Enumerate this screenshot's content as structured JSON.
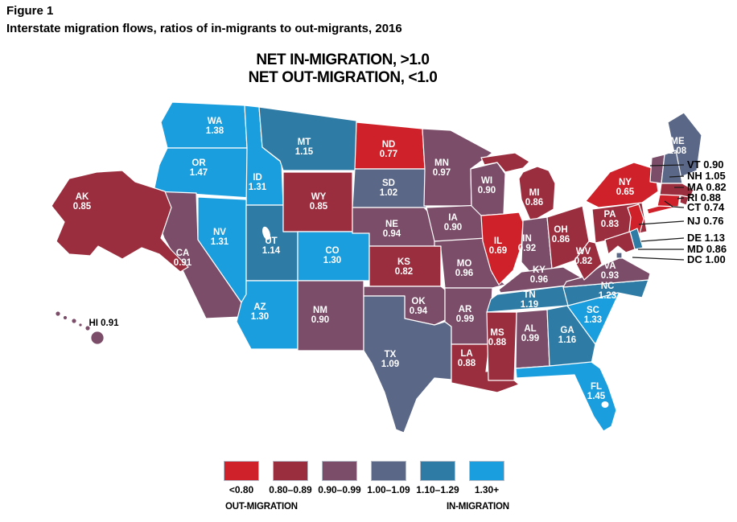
{
  "figure": {
    "label": "Figure 1",
    "title": "Interstate migration flows, ratios of in-migrants to out-migrants, 2016",
    "headline_lines": [
      "NET IN-MIGRATION, >1.0",
      "NET OUT-MIGRATION, <1.0"
    ]
  },
  "legend": {
    "buckets": [
      {
        "label": "<0.80",
        "color": "#ce2129"
      },
      {
        "label": "0.80–0.89",
        "color": "#9b2e3e"
      },
      {
        "label": "0.90–0.99",
        "color": "#7b4d68"
      },
      {
        "label": "1.00–1.09",
        "color": "#5b6787"
      },
      {
        "label": "1.10–1.29",
        "color": "#2e7ba5"
      },
      {
        "label": "1.30+",
        "color": "#1b9edd"
      }
    ],
    "left_caption": "OUT-MIGRATION",
    "right_caption": "IN-MIGRATION"
  },
  "chart_data": {
    "type": "heatmap",
    "subtype": "us-state-choropleth",
    "title": "Interstate migration flows, ratios of in-migrants to out-migrants, 2016",
    "value_name": "ratio of in-migrants to out-migrants",
    "bucket_thresholds": [
      0.8,
      0.9,
      1.0,
      1.1,
      1.3
    ],
    "bucket_labels": [
      "<0.80",
      "0.80–0.89",
      "0.90–0.99",
      "1.00–1.09",
      "1.10–1.29",
      "1.30+"
    ],
    "states": [
      {
        "abbr": "WA",
        "value": "1.38"
      },
      {
        "abbr": "OR",
        "value": "1.47"
      },
      {
        "abbr": "CA",
        "value": "0.91"
      },
      {
        "abbr": "AK",
        "value": "0.85"
      },
      {
        "abbr": "HI",
        "value": "0.91"
      },
      {
        "abbr": "ID",
        "value": "1.31"
      },
      {
        "abbr": "NV",
        "value": "1.31"
      },
      {
        "abbr": "UT",
        "value": "1.14"
      },
      {
        "abbr": "AZ",
        "value": "1.30"
      },
      {
        "abbr": "MT",
        "value": "1.15"
      },
      {
        "abbr": "WY",
        "value": "0.85"
      },
      {
        "abbr": "CO",
        "value": "1.30"
      },
      {
        "abbr": "NM",
        "value": "0.90"
      },
      {
        "abbr": "ND",
        "value": "0.77"
      },
      {
        "abbr": "SD",
        "value": "1.02"
      },
      {
        "abbr": "NE",
        "value": "0.94"
      },
      {
        "abbr": "KS",
        "value": "0.82"
      },
      {
        "abbr": "OK",
        "value": "0.94"
      },
      {
        "abbr": "TX",
        "value": "1.09"
      },
      {
        "abbr": "MN",
        "value": "0.97"
      },
      {
        "abbr": "IA",
        "value": "0.90"
      },
      {
        "abbr": "MO",
        "value": "0.96"
      },
      {
        "abbr": "AR",
        "value": "0.99"
      },
      {
        "abbr": "LA",
        "value": "0.88"
      },
      {
        "abbr": "WI",
        "value": "0.90"
      },
      {
        "abbr": "IL",
        "value": "0.69"
      },
      {
        "abbr": "MI",
        "value": "0.86"
      },
      {
        "abbr": "IN",
        "value": "0.92"
      },
      {
        "abbr": "OH",
        "value": "0.86"
      },
      {
        "abbr": "KY",
        "value": "0.96"
      },
      {
        "abbr": "TN",
        "value": "1.19"
      },
      {
        "abbr": "MS",
        "value": "0.88"
      },
      {
        "abbr": "AL",
        "value": "0.99"
      },
      {
        "abbr": "GA",
        "value": "1.16"
      },
      {
        "abbr": "FL",
        "value": "1.45"
      },
      {
        "abbr": "SC",
        "value": "1.33"
      },
      {
        "abbr": "NC",
        "value": "1.23"
      },
      {
        "abbr": "VA",
        "value": "0.93"
      },
      {
        "abbr": "WV",
        "value": "0.82"
      },
      {
        "abbr": "PA",
        "value": "0.83"
      },
      {
        "abbr": "NY",
        "value": "0.65"
      },
      {
        "abbr": "ME",
        "value": "1.08"
      },
      {
        "abbr": "VT",
        "value": "0.90"
      },
      {
        "abbr": "NH",
        "value": "1.05"
      },
      {
        "abbr": "MA",
        "value": "0.82"
      },
      {
        "abbr": "RI",
        "value": "0.88"
      },
      {
        "abbr": "CT",
        "value": "0.74"
      },
      {
        "abbr": "NJ",
        "value": "0.76"
      },
      {
        "abbr": "DE",
        "value": "1.13"
      },
      {
        "abbr": "MD",
        "value": "0.86"
      },
      {
        "abbr": "DC",
        "value": "1.00"
      }
    ],
    "callout_states": [
      "VT",
      "NH",
      "MA",
      "RI",
      "CT",
      "NJ",
      "DE",
      "MD",
      "DC"
    ]
  }
}
